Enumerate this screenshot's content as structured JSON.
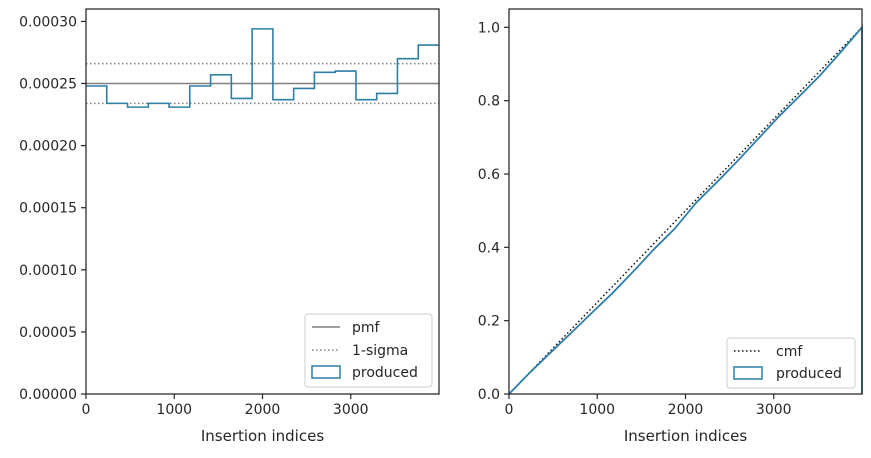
{
  "chart_data": [
    {
      "type": "histogram-step",
      "xlabel": "Insertion indices",
      "ylabel": "",
      "xlim": [
        0,
        4000
      ],
      "ylim": [
        0,
        0.00031
      ],
      "xticks": [
        0,
        1000,
        2000,
        3000
      ],
      "xtick_labels": [
        "0",
        "1000",
        "2000",
        "3000"
      ],
      "yticks": [
        0,
        5e-05,
        0.0001,
        0.00015,
        0.0002,
        0.00025,
        0.0003
      ],
      "ytick_labels": [
        "0.00000",
        "0.00005",
        "0.00010",
        "0.00015",
        "0.00020",
        "0.00025",
        "0.00030"
      ],
      "legend_position": "lower-right",
      "legend": [
        "pmf",
        "1-sigma",
        "produced"
      ],
      "pmf": 0.00025,
      "sigma_band": [
        0.000234,
        0.000266
      ],
      "bin_edges": [
        0,
        235,
        471,
        706,
        941,
        1176,
        1412,
        1647,
        1882,
        2118,
        2353,
        2588,
        2824,
        3059,
        3294,
        3529,
        3765,
        4000
      ],
      "produced": [
        0.000248,
        0.000234,
        0.000231,
        0.000234,
        0.000231,
        0.000248,
        0.000257,
        0.000238,
        0.000294,
        0.000237,
        0.000246,
        0.000259,
        0.00026,
        0.000237,
        0.000242,
        0.00027,
        0.000281
      ],
      "colors": {
        "pmf": "#808080",
        "sigma": "#808080",
        "produced": "#2e7fa8"
      }
    },
    {
      "type": "cumulative-step",
      "xlabel": "Insertion indices",
      "ylabel": "",
      "xlim": [
        0,
        4000
      ],
      "ylim": [
        0,
        1.05
      ],
      "xticks": [
        0,
        1000,
        2000,
        3000
      ],
      "xtick_labels": [
        "0",
        "1000",
        "2000",
        "3000"
      ],
      "yticks": [
        0,
        0.2,
        0.4,
        0.6,
        0.8,
        1.0
      ],
      "ytick_labels": [
        "0.0",
        "0.2",
        "0.4",
        "0.6",
        "0.8",
        "1.0"
      ],
      "legend_position": "lower-right",
      "legend": [
        "cmf",
        "produced"
      ],
      "cmf": {
        "x": [
          0,
          4000
        ],
        "y": [
          0,
          1.0
        ]
      },
      "produced": {
        "x": [
          0,
          235,
          471,
          706,
          941,
          1176,
          1412,
          1647,
          1882,
          2118,
          2353,
          2588,
          2824,
          3059,
          3294,
          3529,
          3765,
          4000
        ],
        "y": [
          0,
          0.058,
          0.113,
          0.167,
          0.222,
          0.276,
          0.335,
          0.396,
          0.452,
          0.521,
          0.577,
          0.635,
          0.696,
          0.757,
          0.813,
          0.87,
          0.934,
          1.0
        ]
      },
      "colors": {
        "cmf": "#111111",
        "produced": "#2e7fa8"
      }
    }
  ]
}
